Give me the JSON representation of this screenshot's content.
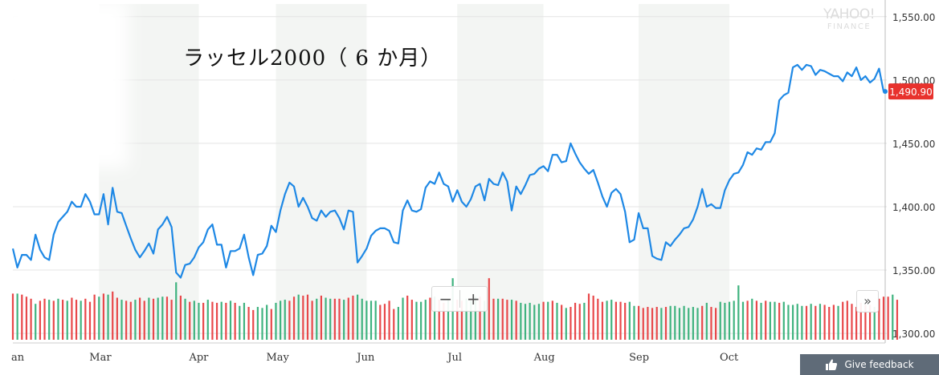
{
  "chart_data": {
    "type": "line",
    "title": "ラッセル2000（ 6 か月）",
    "xlabel": "",
    "ylabel": "",
    "ylim": [
      1295,
      1560
    ],
    "y_ticks": [
      "1,550.00",
      "1,500.00",
      "1,450.00",
      "1,400.00",
      "1,350.00",
      "1,300.00"
    ],
    "y_tick_values": [
      1550,
      1500,
      1450,
      1400,
      1350,
      1300
    ],
    "months": [
      {
        "label": "an",
        "index": 0
      },
      {
        "label": "Mar",
        "index": 19
      },
      {
        "label": "Apr",
        "index": 41
      },
      {
        "label": "May",
        "index": 58
      },
      {
        "label": "Jun",
        "index": 78
      },
      {
        "label": "Jul",
        "index": 98
      },
      {
        "label": "Aug",
        "index": 117
      },
      {
        "label": "Sep",
        "index": 138
      },
      {
        "label": "Oct",
        "index": 158
      }
    ],
    "current_value_label": "1,490.90",
    "series": [
      {
        "values": [
          1367,
          1352,
          1362,
          1362,
          1358,
          1378,
          1366,
          1360,
          1358,
          1378,
          1388,
          1392,
          1396,
          1404,
          1400,
          1400,
          1410,
          1404,
          1394,
          1394,
          1410,
          1386,
          1415,
          1396,
          1395,
          1385,
          1375,
          1366,
          1360,
          1365,
          1371,
          1363,
          1382,
          1386,
          1392,
          1384,
          1348,
          1344,
          1354,
          1355,
          1360,
          1368,
          1372,
          1382,
          1386,
          1370,
          1370,
          1352,
          1365,
          1365,
          1367,
          1378,
          1360,
          1346,
          1362,
          1363,
          1369,
          1385,
          1380,
          1397,
          1410,
          1419,
          1416,
          1400,
          1407,
          1400,
          1391,
          1389,
          1397,
          1392,
          1396,
          1397,
          1391,
          1382,
          1397,
          1396,
          1356,
          1361,
          1367,
          1377,
          1381,
          1383,
          1383,
          1381,
          1372,
          1371,
          1397,
          1405,
          1397,
          1396,
          1398,
          1415,
          1420,
          1418,
          1427,
          1418,
          1416,
          1404,
          1413,
          1404,
          1400,
          1406,
          1416,
          1418,
          1405,
          1422,
          1418,
          1417,
          1427,
          1420,
          1397,
          1416,
          1410,
          1417,
          1425,
          1426,
          1430,
          1432,
          1428,
          1441,
          1441,
          1435,
          1436,
          1450,
          1442,
          1435,
          1430,
          1426,
          1429,
          1419,
          1408,
          1400,
          1411,
          1414,
          1410,
          1396,
          1372,
          1374,
          1395,
          1383,
          1383,
          1361,
          1359,
          1358,
          1372,
          1369,
          1374,
          1378,
          1383,
          1384,
          1390,
          1400,
          1414,
          1400,
          1402,
          1399,
          1399,
          1413,
          1421,
          1426,
          1427,
          1433,
          1443,
          1441,
          1446,
          1445,
          1451,
          1451,
          1458,
          1484,
          1488,
          1490,
          1510,
          1512,
          1508,
          1512,
          1511,
          1504,
          1508,
          1507,
          1505,
          1503,
          1503,
          1499,
          1506,
          1503,
          1510,
          1500,
          1503,
          1498,
          1501,
          1509,
          1491
        ],
        "volume": [
          45,
          45,
          44,
          42,
          40,
          35,
          38,
          40,
          39,
          38,
          40,
          39,
          38,
          41,
          39,
          38,
          40,
          37,
          44,
          42,
          45,
          44,
          47,
          41,
          39,
          38,
          37,
          39,
          41,
          38,
          41,
          40,
          41,
          42,
          42,
          39,
          56,
          43,
          40,
          37,
          38,
          36,
          36,
          39,
          37,
          36,
          37,
          36,
          38,
          36,
          33,
          36,
          32,
          29,
          32,
          31,
          34,
          30,
          36,
          38,
          39,
          38,
          42,
          44,
          43,
          44,
          38,
          40,
          43,
          41,
          40,
          40,
          40,
          39,
          41,
          43,
          44,
          40,
          38,
          38,
          38,
          34,
          35,
          38,
          30,
          32,
          41,
          43,
          39,
          37,
          37,
          39,
          41,
          42,
          39,
          36,
          39,
          60,
          39,
          38,
          40,
          38,
          42,
          42,
          38,
          60,
          40,
          40,
          40,
          39,
          39,
          38,
          36,
          35,
          36,
          34,
          35,
          37,
          37,
          38,
          36,
          34,
          31,
          32,
          36,
          35,
          36,
          45,
          43,
          40,
          37,
          38,
          39,
          37,
          37,
          36,
          37,
          33,
          33,
          31,
          32,
          31,
          32,
          31,
          32,
          33,
          33,
          31,
          33,
          31,
          32,
          31,
          33,
          36,
          32,
          31,
          37,
          36,
          37,
          38,
          53,
          37,
          38,
          40,
          38,
          36,
          38,
          37,
          37,
          36,
          37,
          34,
          34,
          35,
          33,
          33,
          35,
          33,
          35,
          34,
          32,
          34,
          33,
          37,
          38,
          35,
          32,
          36,
          34,
          34,
          32,
          40,
          42,
          42,
          44,
          39
        ],
        "volume_up": [
          false,
          true,
          false,
          false,
          false,
          true,
          false,
          false,
          true,
          false,
          true,
          false,
          true,
          false,
          false,
          true,
          false,
          false,
          false,
          true,
          false,
          true,
          false,
          false,
          true,
          false,
          false,
          true,
          false,
          false,
          true,
          false,
          true,
          true,
          false,
          false,
          true,
          false,
          true,
          false,
          true,
          true,
          false,
          true,
          false,
          false,
          true,
          false,
          true,
          false,
          true,
          true,
          false,
          false,
          true,
          true,
          true,
          false,
          true,
          true,
          true,
          false,
          false,
          true,
          false,
          false,
          false,
          true,
          false,
          true,
          true,
          false,
          false,
          true,
          false,
          false,
          true,
          true,
          true,
          true,
          true,
          false,
          false,
          false,
          false,
          true,
          true,
          false,
          false,
          true,
          true,
          true,
          false,
          true,
          false,
          false,
          true,
          true,
          false,
          false,
          true,
          true,
          true,
          false,
          true,
          false,
          false,
          true,
          false,
          false,
          true,
          false,
          true,
          true,
          true,
          true,
          true,
          false,
          true,
          false,
          true,
          false,
          true,
          false,
          false,
          false,
          true,
          false,
          false,
          false,
          false,
          true,
          true,
          false,
          false,
          false,
          true,
          true,
          false,
          false,
          false,
          false,
          false,
          true,
          false,
          true,
          true,
          true,
          true,
          true,
          true,
          true,
          false,
          true,
          false,
          false,
          true,
          true,
          true,
          true,
          true,
          true,
          false,
          true,
          false,
          true,
          false,
          true,
          true,
          false,
          true,
          true,
          true,
          true,
          true,
          false,
          true,
          false,
          true,
          false,
          false,
          false,
          true,
          false,
          false,
          false,
          false,
          false,
          false,
          false,
          true,
          false,
          false,
          false,
          true,
          false
        ]
      }
    ],
    "grid": true,
    "colors": {
      "line": "#1e88e5",
      "volume_up": "#3fb37f",
      "volume_down": "#e8484a",
      "price_badge": "#e8322d",
      "band": "#f3f5f3"
    }
  },
  "watermark": {
    "line1": "YAHOO!",
    "line2": "FINANCE"
  },
  "controls": {
    "zoom_out": "−",
    "zoom_in": "+",
    "more": "»"
  },
  "feedback": {
    "label": "Give feedback"
  }
}
